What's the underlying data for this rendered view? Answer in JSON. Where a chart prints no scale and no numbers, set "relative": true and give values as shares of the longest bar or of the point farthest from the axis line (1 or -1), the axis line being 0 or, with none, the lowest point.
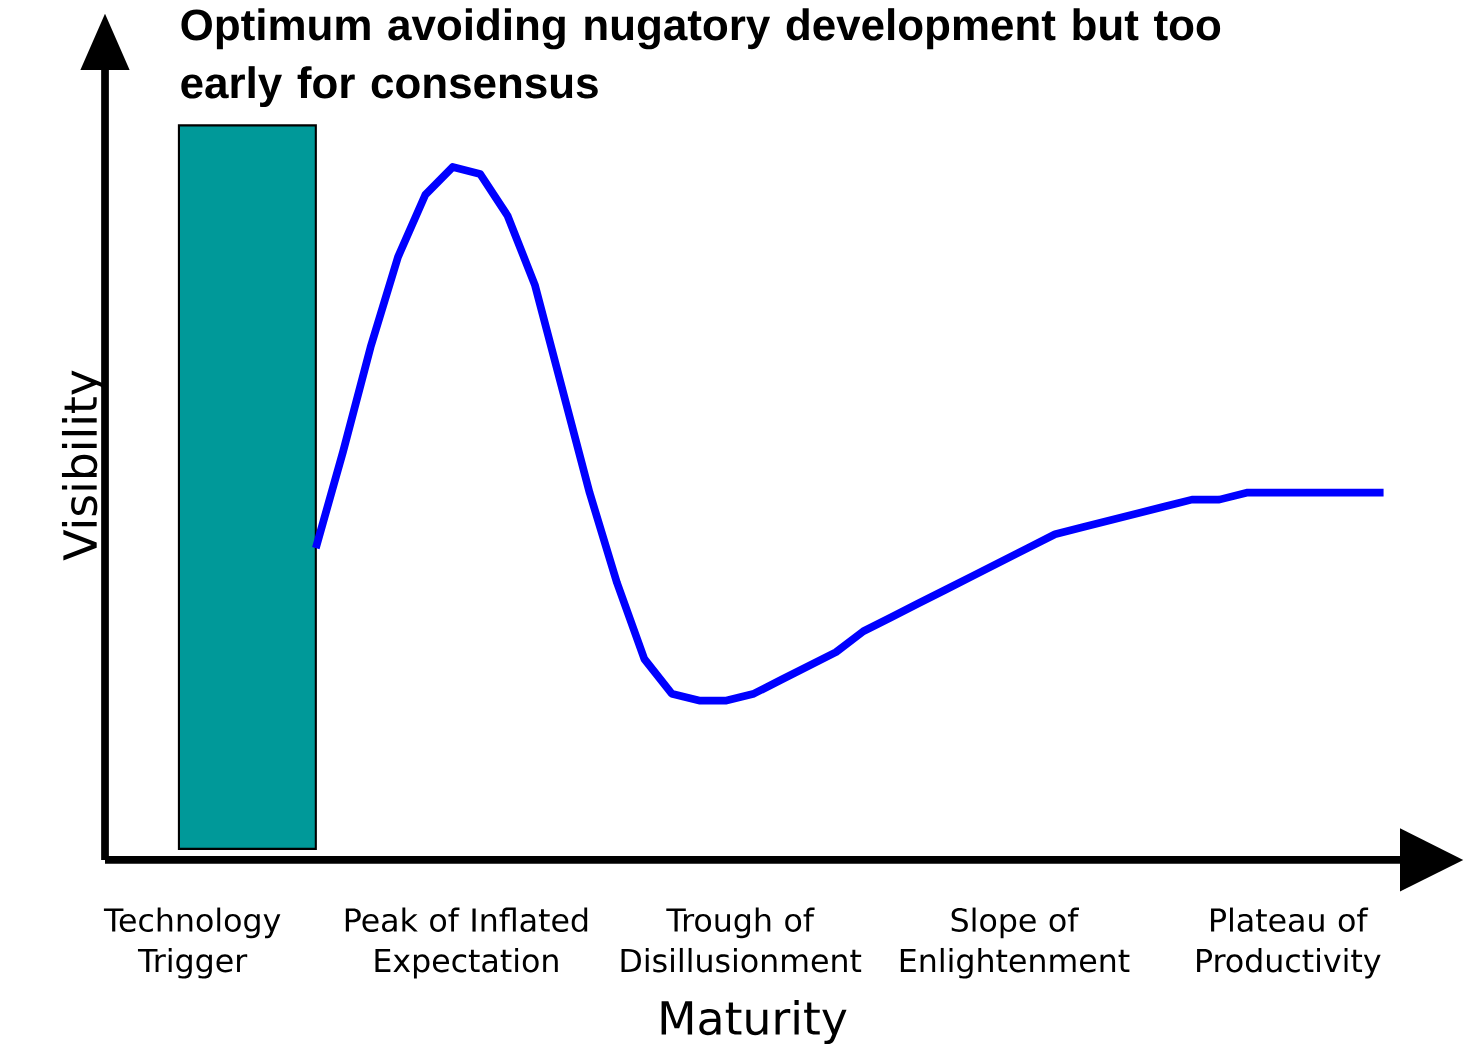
{
  "chart_data": {
    "type": "line",
    "relative": true,
    "xlabel": "Maturity",
    "ylabel": "Visibility",
    "categories": [
      null,
      null,
      null,
      null,
      null,
      null,
      null,
      null,
      null,
      null,
      null,
      null,
      null,
      null,
      null,
      null,
      null,
      null,
      null,
      null,
      null,
      null,
      null,
      null,
      null,
      null,
      null,
      null,
      null,
      null,
      null,
      null,
      null,
      null,
      null,
      null,
      null,
      null,
      null,
      null,
      null,
      null,
      null,
      null,
      null
    ],
    "series": [
      {
        "color": "#0000ff",
        "values": [
          null,
          null,
          null,
          null,
          null,
          0.45,
          0.59,
          0.74,
          0.87,
          0.96,
          1.0,
          0.99,
          0.93,
          0.83,
          0.68,
          0.53,
          0.4,
          0.29,
          0.24,
          0.23,
          0.23,
          0.24,
          0.26,
          0.28,
          0.3,
          0.33,
          0.35,
          0.37,
          0.39,
          0.41,
          0.43,
          0.45,
          0.47,
          0.48,
          0.49,
          0.5,
          0.51,
          0.52,
          0.52,
          0.53,
          0.53,
          0.53,
          0.53,
          0.53,
          0.53
        ]
      }
    ],
    "title": "Optimum avoiding nugatory development but too early for consensus",
    "annotations": [
      "Technology Trigger",
      "Peak of Inflated Expectation",
      "Trough of Disillusionment",
      "Slope of Enlightenment",
      "Plateau of Productivity"
    ],
    "marker": "none",
    "line_style": "solid"
  }
}
